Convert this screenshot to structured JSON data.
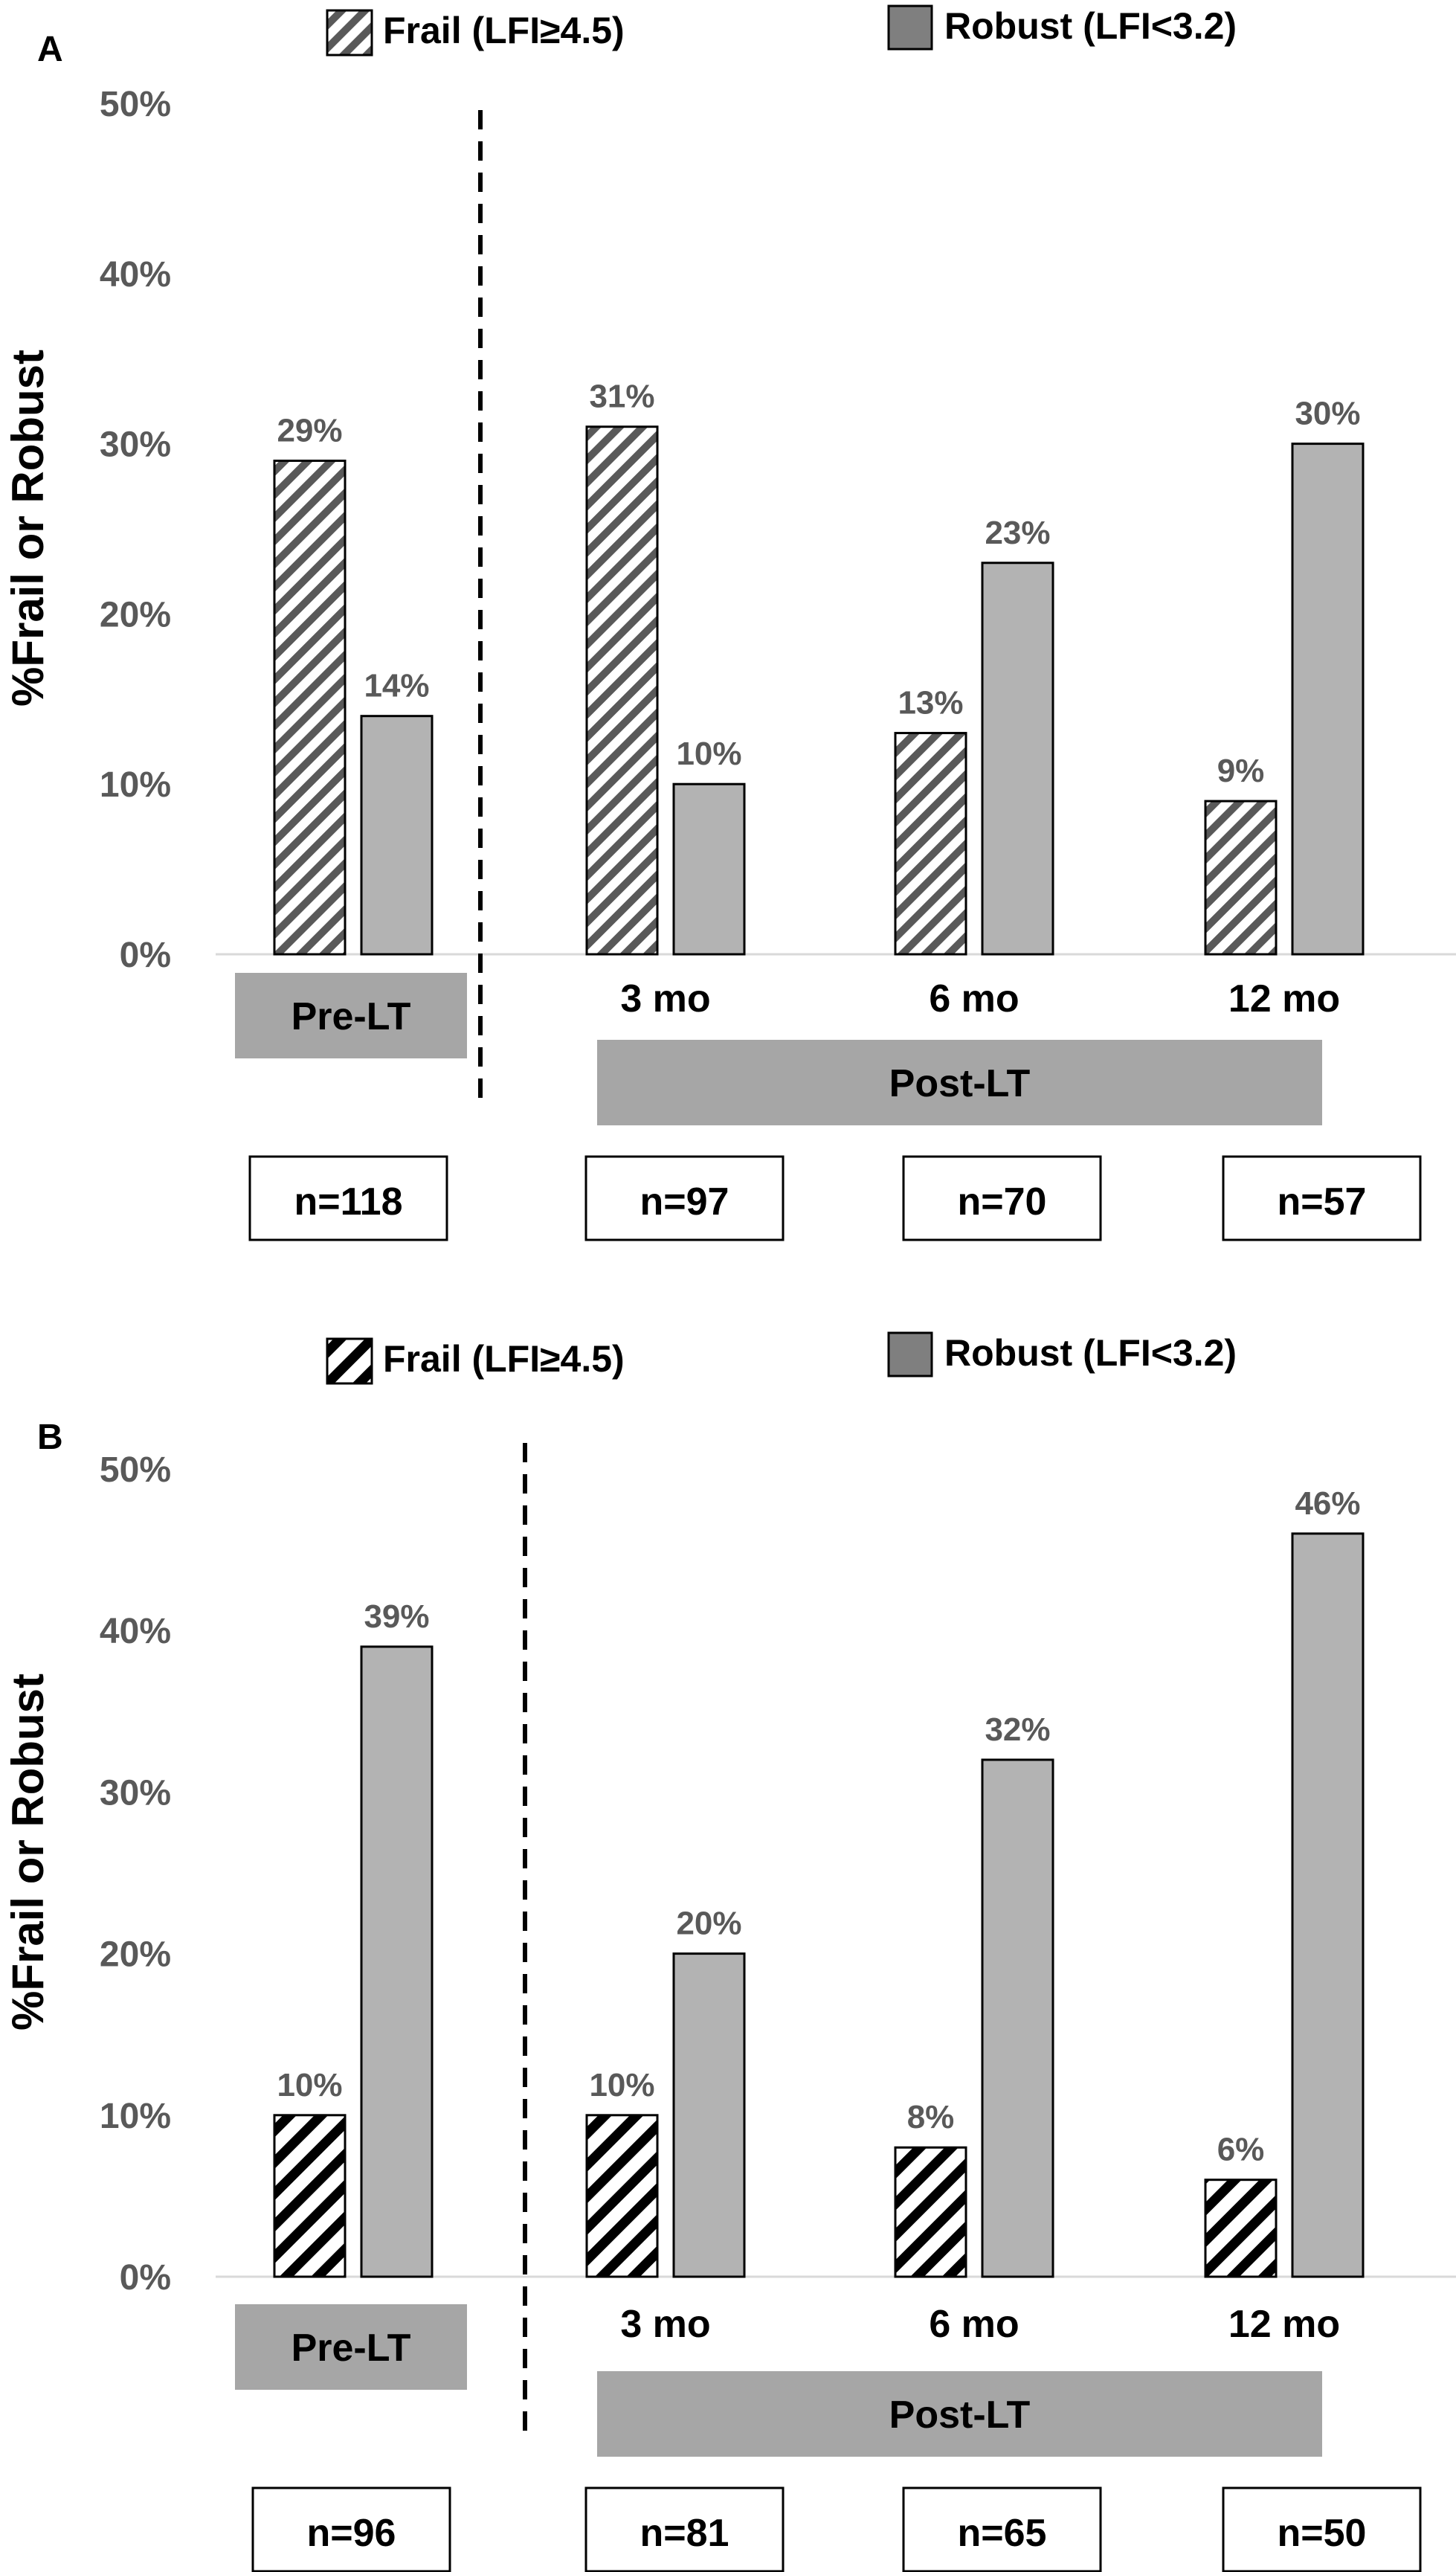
{
  "chart_data": [
    {
      "type": "bar",
      "panel_label": "A",
      "ylabel": "%Frail or Robust",
      "ylim": [
        0,
        50
      ],
      "y_ticks": [
        "0%",
        "10%",
        "20%",
        "30%",
        "40%",
        "50%"
      ],
      "grid": false,
      "legend_position": "top",
      "categories": [
        "Pre-LT",
        "3 mo",
        "6 mo",
        "12 mo"
      ],
      "group_label": "Post-LT",
      "sample_sizes": [
        "n=118",
        "n=97",
        "n=70",
        "n=57"
      ],
      "series": [
        {
          "name": "Frail (LFI≥4.5)",
          "values": [
            29,
            31,
            13,
            9
          ],
          "labels": [
            "29%",
            "31%",
            "13%",
            "9%"
          ]
        },
        {
          "name": "Robust (LFI<3.2)",
          "values": [
            14,
            10,
            23,
            30
          ],
          "labels": [
            "14%",
            "10%",
            "23%",
            "30%"
          ]
        }
      ]
    },
    {
      "type": "bar",
      "panel_label": "B",
      "ylabel": "%Frail or Robust",
      "ylim": [
        0,
        50
      ],
      "y_ticks": [
        "0%",
        "10%",
        "20%",
        "30%",
        "40%",
        "50%"
      ],
      "grid": false,
      "legend_position": "top",
      "categories": [
        "Pre-LT",
        "3 mo",
        "6 mo",
        "12 mo"
      ],
      "group_label": "Post-LT",
      "sample_sizes": [
        "n=96",
        "n=81",
        "n=65",
        "n=50"
      ],
      "series": [
        {
          "name": "Frail (LFI≥4.5)",
          "values": [
            10,
            10,
            8,
            6
          ],
          "labels": [
            "10%",
            "10%",
            "8%",
            "6%"
          ]
        },
        {
          "name": "Robust (LFI<3.2)",
          "values": [
            39,
            20,
            32,
            46
          ],
          "labels": [
            "39%",
            "20%",
            "32%",
            "46%"
          ]
        }
      ]
    }
  ],
  "colors": {
    "robust_fill": "#b3b3b3",
    "frail_hatch_a": "#595959",
    "frail_hatch_b": "#000000",
    "label_box": "#a6a6a6",
    "axis_text": "#595959",
    "robust_legend": "#7f7f7f"
  }
}
